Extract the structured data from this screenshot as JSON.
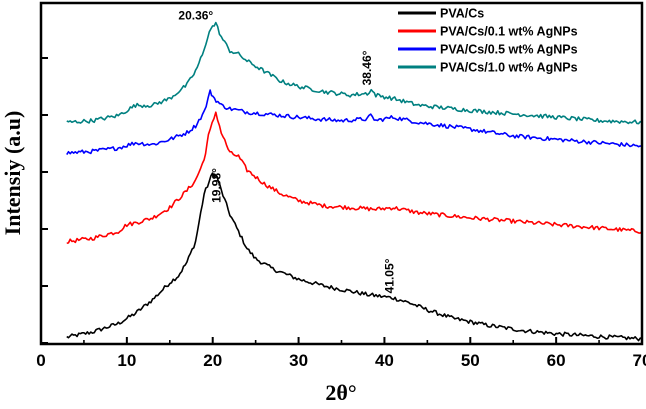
{
  "chart_data": {
    "type": "line",
    "title": "",
    "xlabel": "2θ°",
    "ylabel": "Intensiy (a.u)",
    "xlim": [
      0,
      70
    ],
    "ylim": [
      0,
      1
    ],
    "xticks": [
      "0",
      "10",
      "20",
      "30",
      "40",
      "50",
      "60",
      "70"
    ],
    "grid": false,
    "legend_position": "top-right",
    "series": [
      {
        "name": "PVA/Cs",
        "color": "#000000",
        "x": [
          3,
          6,
          9,
          11,
          13,
          15,
          16,
          17,
          18,
          19,
          19.98,
          20.5,
          21,
          22,
          23,
          24,
          25,
          27,
          30,
          33,
          36,
          38,
          41.05,
          43,
          45,
          48,
          52,
          56,
          60,
          65,
          70
        ],
        "y": [
          0.02,
          0.035,
          0.06,
          0.09,
          0.13,
          0.18,
          0.2,
          0.24,
          0.3,
          0.44,
          0.5,
          0.49,
          0.45,
          0.38,
          0.33,
          0.28,
          0.25,
          0.22,
          0.19,
          0.17,
          0.155,
          0.145,
          0.135,
          0.12,
          0.1,
          0.075,
          0.055,
          0.04,
          0.03,
          0.022,
          0.015
        ]
      },
      {
        "name": "PVA/Cs/0.1 wt% AgNPs",
        "color": "#ff0000",
        "x": [
          3,
          6,
          9,
          10,
          11,
          13,
          15,
          17,
          18,
          19,
          19.5,
          20.36,
          21,
          22,
          23,
          24,
          26,
          28,
          30,
          33,
          36,
          39,
          41,
          44,
          50,
          55,
          60,
          65,
          70
        ],
        "y": [
          0.3,
          0.31,
          0.33,
          0.35,
          0.355,
          0.37,
          0.4,
          0.45,
          0.48,
          0.54,
          0.61,
          0.68,
          0.62,
          0.56,
          0.55,
          0.51,
          0.47,
          0.44,
          0.42,
          0.405,
          0.4,
          0.395,
          0.4,
          0.385,
          0.37,
          0.36,
          0.35,
          0.34,
          0.33
        ]
      },
      {
        "name": "PVA/Cs/0.5  wt% AgNPs",
        "color": "#0000ff",
        "x": [
          3,
          6,
          9,
          11,
          13,
          15,
          17,
          18,
          19,
          19.7,
          20.2,
          21,
          22,
          24,
          28,
          32,
          35,
          38,
          38.4,
          39,
          41,
          44,
          50,
          55,
          60,
          65,
          70
        ],
        "y": [
          0.56,
          0.565,
          0.575,
          0.59,
          0.585,
          0.6,
          0.62,
          0.64,
          0.68,
          0.74,
          0.72,
          0.7,
          0.69,
          0.68,
          0.67,
          0.66,
          0.655,
          0.66,
          0.67,
          0.655,
          0.665,
          0.65,
          0.63,
          0.61,
          0.6,
          0.59,
          0.58
        ]
      },
      {
        "name": "PVA/Cs/1.0 wt% AgNPs",
        "color": "#008080",
        "x": [
          3,
          6,
          9,
          11,
          13,
          15,
          17,
          18,
          19,
          19.6,
          20.36,
          21,
          22,
          23,
          24,
          26,
          28,
          30,
          33,
          36,
          38,
          38.46,
          39,
          41,
          44,
          50,
          55,
          60,
          65,
          70
        ],
        "y": [
          0.65,
          0.655,
          0.67,
          0.7,
          0.7,
          0.72,
          0.76,
          0.8,
          0.86,
          0.92,
          0.94,
          0.9,
          0.86,
          0.85,
          0.83,
          0.8,
          0.77,
          0.755,
          0.74,
          0.73,
          0.735,
          0.745,
          0.73,
          0.72,
          0.7,
          0.685,
          0.675,
          0.665,
          0.655,
          0.65
        ]
      }
    ],
    "annotations": [
      {
        "text": "20.36°",
        "x": 20.36,
        "y": 0.94,
        "rotated": false
      },
      {
        "text": "38.46°",
        "x": 38.46,
        "y": 0.745,
        "rotated": true
      },
      {
        "text": "19.98°",
        "x": 19.98,
        "y": 0.5,
        "rotated": true
      },
      {
        "text": "41.05°",
        "x": 41.05,
        "y": 0.135,
        "rotated": true
      }
    ]
  }
}
